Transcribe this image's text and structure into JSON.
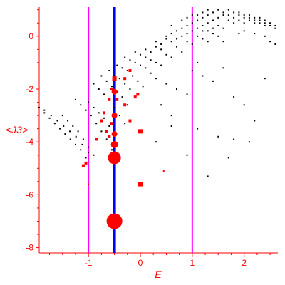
{
  "chart_data": {
    "type": "scatter",
    "xlabel": "E",
    "ylabel": "<J3>",
    "xlim": [
      -1.95,
      2.65
    ],
    "ylim": [
      -8.2,
      1.1
    ],
    "x_ticks": [
      -1,
      0,
      1,
      2
    ],
    "y_ticks": [
      -8,
      -6,
      -4,
      -2,
      0
    ],
    "colors": {
      "axis": "#ff0000",
      "small_points": "#000000",
      "weighted_points": "#ff0000",
      "blue_line": "#0000ff",
      "magenta_line": "#ff00ff"
    },
    "vertical_lines": [
      {
        "x": -1.0,
        "color": "#ff00ff",
        "style": "thin"
      },
      {
        "x": -0.5,
        "color": "#0000ff",
        "style": "thick"
      },
      {
        "x": 1.0,
        "color": "#ff00ff",
        "style": "thin"
      }
    ],
    "series": [
      {
        "color": "#000000",
        "points": [
          [
            -1.95,
            -2.7
          ],
          [
            -1.85,
            -2.9
          ],
          [
            -1.75,
            -3.1
          ],
          [
            -1.65,
            -3.3
          ],
          [
            -1.55,
            -3.5
          ],
          [
            -1.45,
            -3.7
          ],
          [
            -1.35,
            -3.9
          ],
          [
            -1.25,
            -4.1
          ],
          [
            -1.15,
            -4.3
          ],
          [
            -1.05,
            -4.6
          ],
          [
            -1.85,
            -2.8
          ],
          [
            -1.72,
            -3.0
          ],
          [
            -1.6,
            -3.2
          ],
          [
            -1.48,
            -3.4
          ],
          [
            -1.36,
            -3.6
          ],
          [
            -1.24,
            -3.8
          ],
          [
            -1.12,
            -4.1
          ],
          [
            -1.0,
            -4.4
          ],
          [
            -1.5,
            -3.0
          ],
          [
            -1.4,
            -3.2
          ],
          [
            -1.3,
            -3.4
          ],
          [
            -1.2,
            -3.6
          ],
          [
            -1.1,
            -3.9
          ],
          [
            -1.0,
            -4.2
          ],
          [
            -0.9,
            -4.5
          ],
          [
            -1.25,
            -2.4
          ],
          [
            -1.15,
            -2.6
          ],
          [
            -1.05,
            -2.8
          ],
          [
            -0.95,
            -3.0
          ],
          [
            -0.85,
            -3.3
          ],
          [
            -0.75,
            -3.6
          ],
          [
            -0.65,
            -3.9
          ],
          [
            -0.55,
            -4.3
          ],
          [
            -1.0,
            -2.5
          ],
          [
            -0.9,
            -2.7
          ],
          [
            -0.8,
            -2.9
          ],
          [
            -0.7,
            -3.1
          ],
          [
            -0.6,
            -3.4
          ],
          [
            -0.5,
            -3.7
          ],
          [
            -0.9,
            -1.8
          ],
          [
            -0.8,
            -2.0
          ],
          [
            -0.7,
            -2.2
          ],
          [
            -0.6,
            -2.4
          ],
          [
            -0.5,
            -2.7
          ],
          [
            -0.4,
            -3.0
          ],
          [
            -0.3,
            -3.3
          ],
          [
            -0.75,
            -1.5
          ],
          [
            -0.65,
            -1.7
          ],
          [
            -0.55,
            -1.9
          ],
          [
            -0.45,
            -2.1
          ],
          [
            -0.35,
            -2.3
          ],
          [
            -0.25,
            -2.6
          ],
          [
            -0.6,
            -1.3
          ],
          [
            -0.5,
            -1.5
          ],
          [
            -0.4,
            -1.6
          ],
          [
            -0.3,
            -1.8
          ],
          [
            -0.2,
            -2.0
          ],
          [
            -0.1,
            -2.3
          ],
          [
            -0.45,
            -1.1
          ],
          [
            -0.35,
            -1.2
          ],
          [
            -0.25,
            -1.3
          ],
          [
            -0.15,
            -1.5
          ],
          [
            -0.05,
            -1.7
          ],
          [
            0.05,
            -1.9
          ],
          [
            -0.3,
            -0.8
          ],
          [
            -0.2,
            -0.9
          ],
          [
            -0.1,
            -1.0
          ],
          [
            0.0,
            -1.1
          ],
          [
            0.1,
            -1.2
          ],
          [
            0.2,
            -1.4
          ],
          [
            -0.1,
            -0.6
          ],
          [
            0.0,
            -0.7
          ],
          [
            0.1,
            -0.8
          ],
          [
            0.2,
            -0.9
          ],
          [
            0.3,
            -1.0
          ],
          [
            0.4,
            -1.1
          ],
          [
            0.1,
            -0.5
          ],
          [
            0.2,
            -0.6
          ],
          [
            0.3,
            -0.4
          ],
          [
            0.4,
            -0.5
          ],
          [
            0.5,
            -0.7
          ],
          [
            0.6,
            -0.8
          ],
          [
            0.3,
            -0.2
          ],
          [
            0.4,
            -0.3
          ],
          [
            0.5,
            -0.1
          ],
          [
            0.6,
            -0.2
          ],
          [
            0.7,
            -0.4
          ],
          [
            0.8,
            -0.6
          ],
          [
            0.5,
            0.0
          ],
          [
            0.6,
            0.1
          ],
          [
            0.7,
            -0.1
          ],
          [
            0.8,
            0.0
          ],
          [
            0.9,
            -0.2
          ],
          [
            1.0,
            -0.3
          ],
          [
            0.7,
            0.2
          ],
          [
            0.8,
            0.3
          ],
          [
            0.9,
            0.1
          ],
          [
            1.0,
            0.2
          ],
          [
            1.1,
            0.0
          ],
          [
            1.2,
            -0.1
          ],
          [
            0.9,
            0.4
          ],
          [
            1.0,
            0.5
          ],
          [
            1.1,
            0.3
          ],
          [
            1.2,
            0.4
          ],
          [
            1.3,
            0.2
          ],
          [
            1.4,
            0.1
          ],
          [
            1.1,
            0.6
          ],
          [
            1.2,
            0.7
          ],
          [
            1.3,
            0.5
          ],
          [
            1.4,
            0.6
          ],
          [
            1.5,
            0.4
          ],
          [
            1.6,
            0.3
          ],
          [
            1.3,
            0.8
          ],
          [
            1.4,
            0.9
          ],
          [
            1.5,
            0.7
          ],
          [
            1.6,
            0.8
          ],
          [
            1.7,
            0.6
          ],
          [
            1.8,
            0.5
          ],
          [
            1.5,
            1.0
          ],
          [
            1.6,
            0.9
          ],
          [
            1.7,
            0.8
          ],
          [
            1.8,
            0.7
          ],
          [
            1.9,
            0.6
          ],
          [
            2.0,
            0.5
          ],
          [
            1.7,
            1.0
          ],
          [
            1.8,
            0.9
          ],
          [
            1.9,
            0.8
          ],
          [
            2.0,
            0.7
          ],
          [
            2.1,
            0.6
          ],
          [
            2.2,
            0.5
          ],
          [
            1.9,
            0.9
          ],
          [
            2.0,
            0.8
          ],
          [
            2.1,
            0.7
          ],
          [
            2.2,
            0.6
          ],
          [
            2.3,
            0.5
          ],
          [
            2.4,
            0.4
          ],
          [
            2.1,
            0.8
          ],
          [
            2.2,
            0.7
          ],
          [
            2.3,
            0.6
          ],
          [
            2.4,
            0.5
          ],
          [
            2.5,
            0.4
          ],
          [
            2.6,
            0.3
          ],
          [
            2.3,
            0.7
          ],
          [
            2.4,
            0.6
          ],
          [
            2.5,
            0.5
          ],
          [
            2.6,
            0.4
          ],
          [
            1.2,
            0.9
          ],
          [
            1.3,
            1.0
          ],
          [
            1.1,
            0.8
          ],
          [
            1.4,
            0.3
          ],
          [
            1.5,
            0.0
          ],
          [
            1.6,
            -0.2
          ],
          [
            0.6,
            0.4
          ],
          [
            0.8,
            0.6
          ],
          [
            0.9,
            0.7
          ],
          [
            1.0,
            0.8
          ],
          [
            1.2,
            0.2
          ],
          [
            1.3,
            -0.2
          ],
          [
            2.0,
            0.2
          ],
          [
            2.2,
            0.1
          ],
          [
            2.4,
            0.0
          ],
          [
            2.5,
            -0.2
          ],
          [
            2.6,
            -0.3
          ],
          [
            1.9,
            0.1
          ],
          [
            0.3,
            -1.6
          ],
          [
            0.5,
            -1.8
          ],
          [
            0.7,
            -2.0
          ],
          [
            0.9,
            -2.2
          ],
          [
            0.4,
            -2.6
          ],
          [
            0.6,
            -3.0
          ],
          [
            1.0,
            -1.3
          ],
          [
            1.2,
            -1.5
          ],
          [
            1.4,
            -1.7
          ],
          [
            1.8,
            -2.3
          ],
          [
            2.0,
            -2.6
          ],
          [
            2.2,
            -3.2
          ],
          [
            1.1,
            -3.5
          ],
          [
            1.5,
            -3.8
          ],
          [
            1.8,
            -3.9
          ],
          [
            2.1,
            -4.0
          ],
          [
            1.7,
            -4.6
          ],
          [
            1.3,
            -5.3
          ],
          [
            0.9,
            -4.5
          ],
          [
            0.3,
            -4.0
          ],
          [
            0.6,
            -3.4
          ],
          [
            1.1,
            -1.0
          ],
          [
            1.6,
            -1.2
          ],
          [
            2.4,
            -1.6
          ]
        ]
      },
      {
        "color": "#ff0000",
        "points": [
          {
            "x": -0.5,
            "y": -7.0,
            "size": 11
          },
          {
            "x": -0.5,
            "y": -4.6,
            "size": 9
          },
          {
            "x": -0.5,
            "y": -4.1,
            "size": 5
          },
          {
            "x": -0.5,
            "y": -3.7,
            "size": 4
          },
          {
            "x": -0.5,
            "y": -3.0,
            "size": 4
          },
          {
            "x": -0.5,
            "y": -2.1,
            "size": 4
          },
          {
            "x": -0.5,
            "y": -1.6,
            "size": 3
          },
          {
            "x": -0.55,
            "y": -3.3,
            "size": 2
          },
          {
            "x": -0.6,
            "y": -3.8,
            "size": 2
          },
          {
            "x": -0.65,
            "y": -3.6,
            "size": 2
          },
          {
            "x": -0.7,
            "y": -2.9,
            "size": 2
          },
          {
            "x": -0.75,
            "y": -3.2,
            "size": 2
          },
          {
            "x": -0.6,
            "y": -2.4,
            "size": 2
          },
          {
            "x": -0.3,
            "y": -1.6,
            "size": 2
          },
          {
            "x": -0.3,
            "y": -2.6,
            "size": 2
          },
          {
            "x": -0.2,
            "y": -1.3,
            "size": 2
          },
          {
            "x": -0.1,
            "y": -2.3,
            "size": 2
          },
          {
            "x": -0.05,
            "y": -2.2,
            "size": 2
          },
          {
            "x": -0.2,
            "y": -3.2,
            "size": 2
          },
          {
            "x": 0.0,
            "y": -3.6,
            "size": 3
          },
          {
            "x": 0.0,
            "y": -5.6,
            "size": 3
          },
          {
            "x": -1.1,
            "y": -4.9,
            "size": 2
          },
          {
            "x": -1.05,
            "y": -4.8,
            "size": 2
          },
          {
            "x": -1.0,
            "y": -5.6,
            "size": 1
          },
          {
            "x": 0.45,
            "y": -5.1,
            "size": 1
          },
          {
            "x": -0.85,
            "y": -3.9,
            "size": 2
          },
          {
            "x": -0.45,
            "y": -2.4,
            "size": 2
          },
          {
            "x": -0.55,
            "y": -2.0,
            "size": 2
          }
        ]
      }
    ]
  }
}
